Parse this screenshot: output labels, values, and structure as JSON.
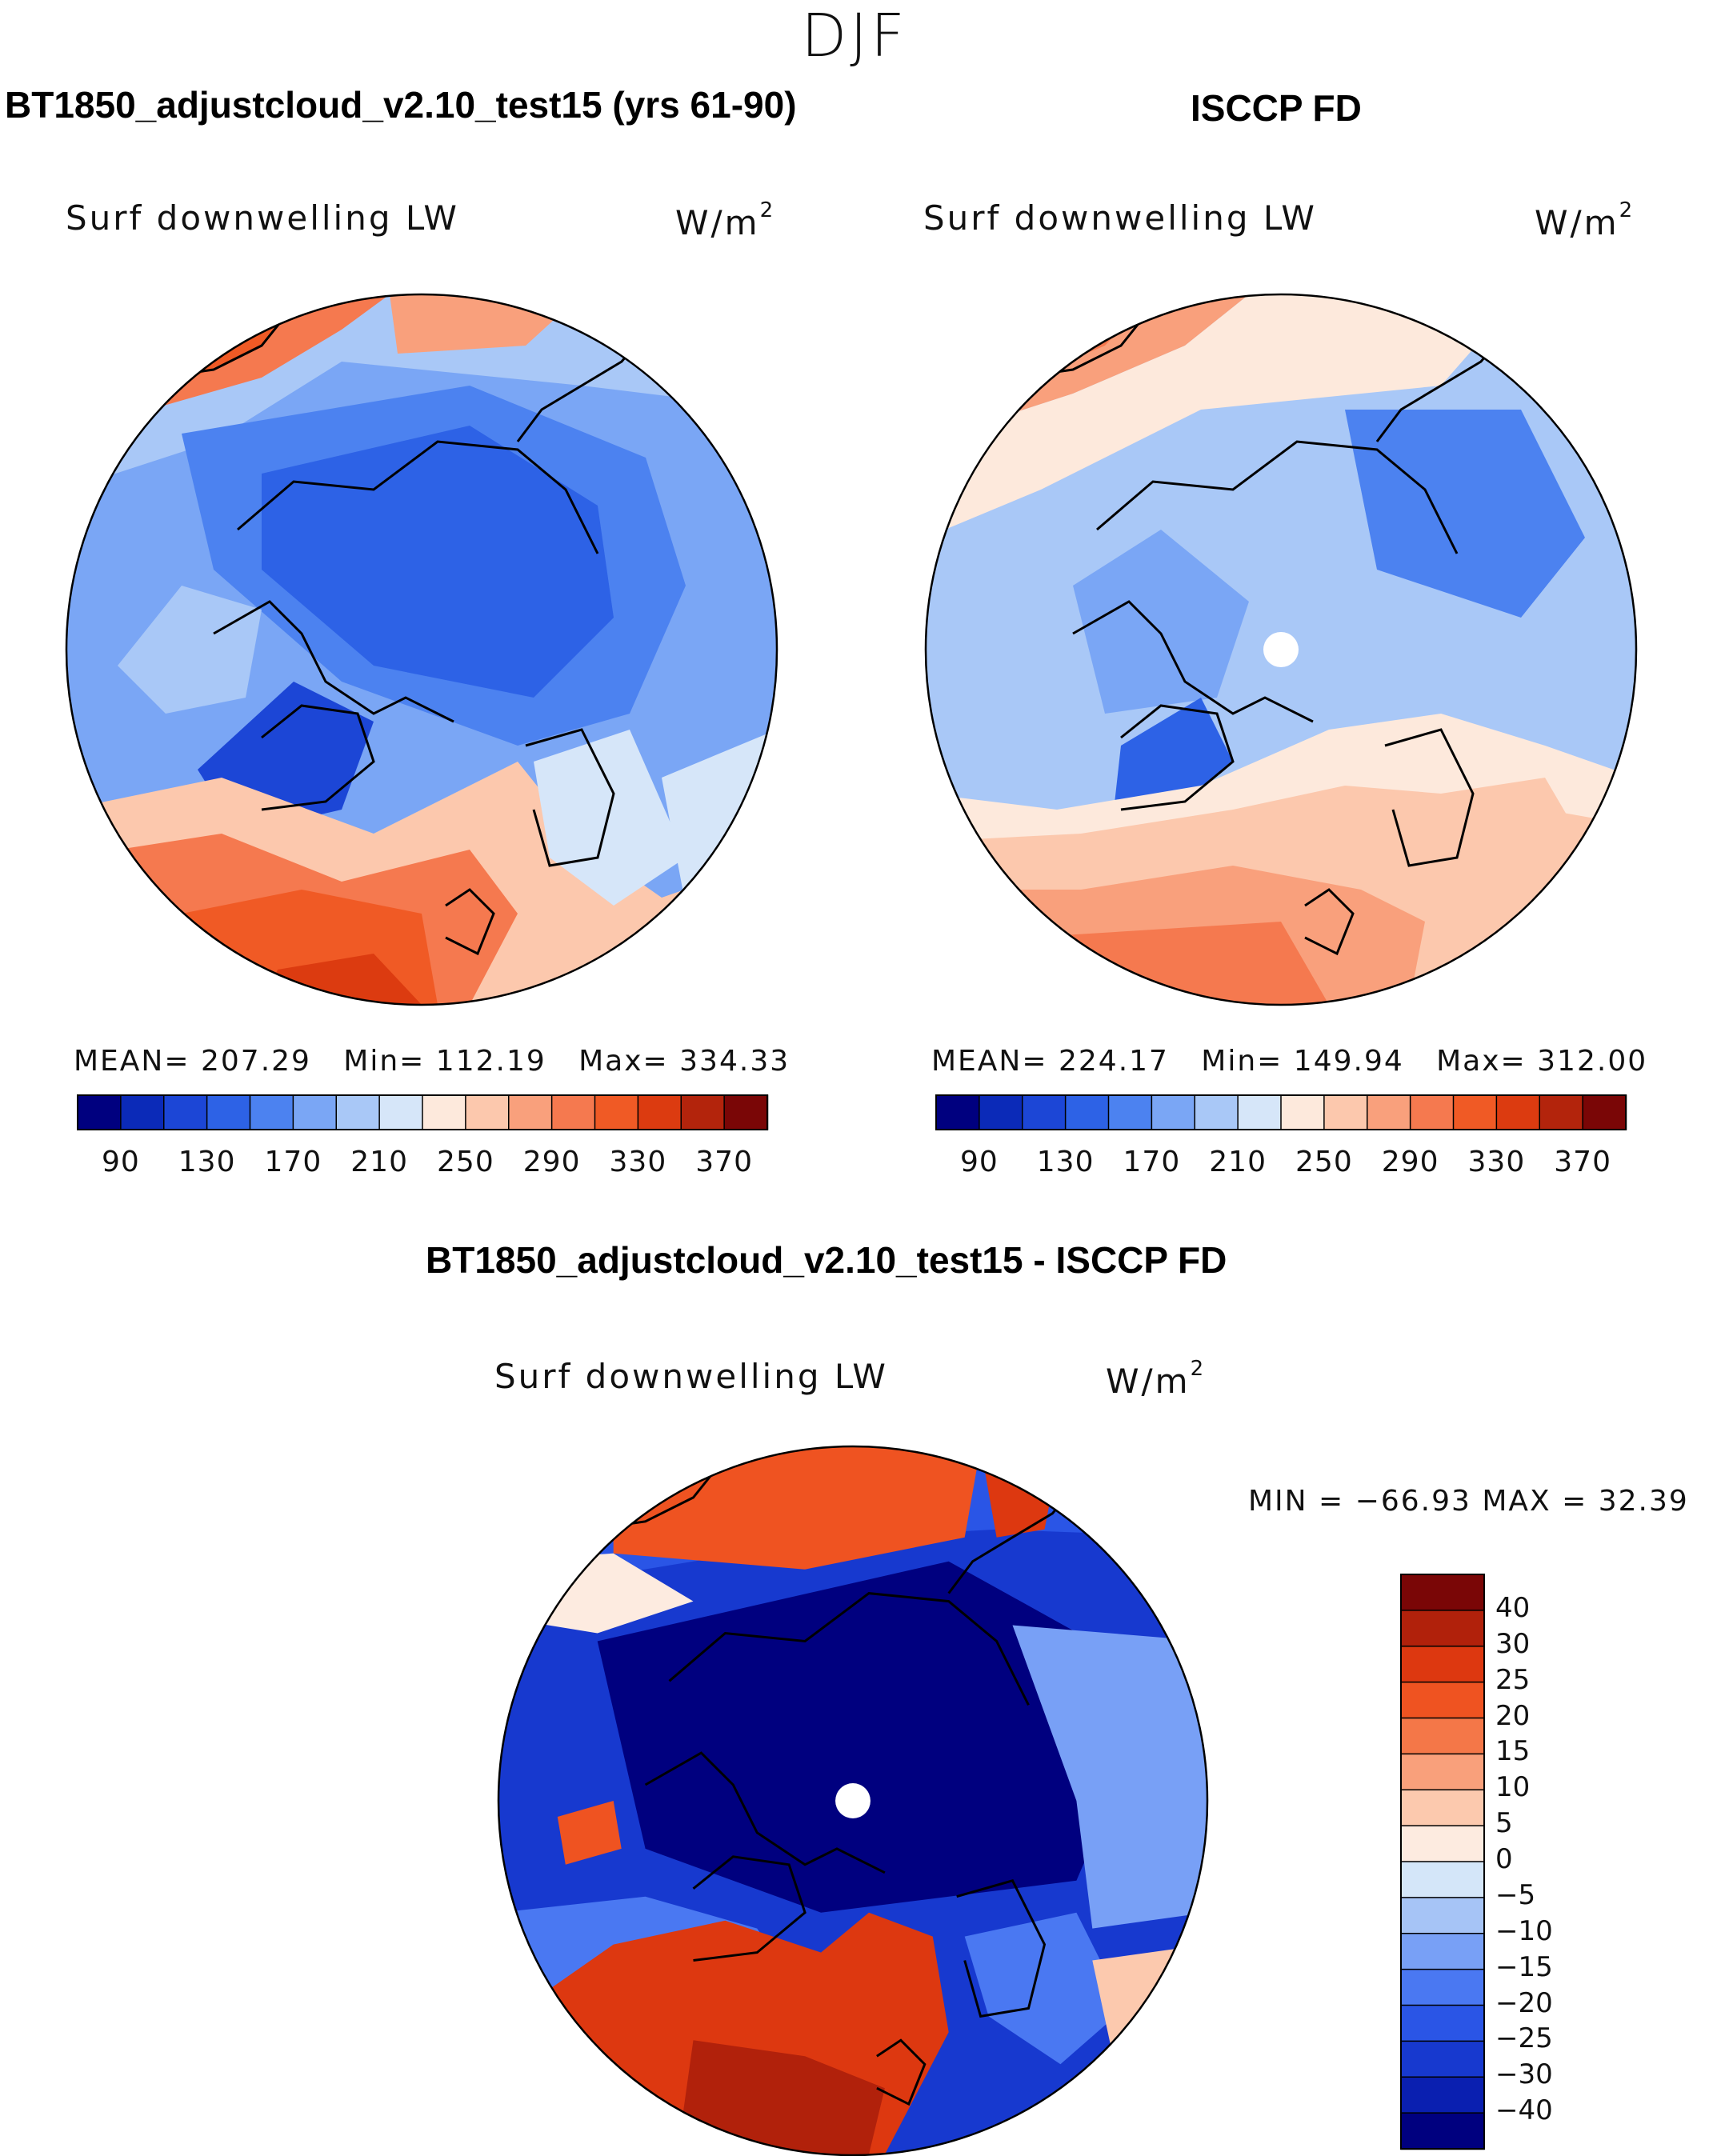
{
  "season": "DJF",
  "colors": {
    "seq": [
      "#00007f",
      "#0b2ab8",
      "#1c46d6",
      "#2d62e6",
      "#4c82f0",
      "#7aa6f5",
      "#a9c8f7",
      "#d6e6f9",
      "#fde9dc",
      "#fcc8ad",
      "#f9a07c",
      "#f5794f",
      "#f05a25",
      "#dc3b10",
      "#b3240c",
      "#7a0606"
    ],
    "diff": [
      "#00007f",
      "#0a1fb0",
      "#1739cf",
      "#2a55e6",
      "#4a78f2",
      "#78a0f6",
      "#a6c4f6",
      "#d4e6f9",
      "#fdebe0",
      "#fcc9ae",
      "#f9a07b",
      "#f47748",
      "#ef5321",
      "#dd3810",
      "#b1210b",
      "#7a0606"
    ]
  },
  "chart_data": [
    {
      "type": "heatmap",
      "projection": "north-polar-stereographic",
      "title": "BT1850_adjustcloud_v2.10_test15 (yrs 61-90)",
      "variable": "Surf downwelling LW",
      "units": "W/m",
      "units_exp": "2",
      "stats": {
        "mean_label": "MEAN=",
        "mean": "207.29",
        "min_label": "Min=",
        "min": "112.19",
        "max_label": "Max=",
        "max": "334.33"
      },
      "colorbar": {
        "orientation": "horizontal",
        "levels": [
          80,
          100,
          120,
          140,
          160,
          180,
          200,
          220,
          240,
          260,
          280,
          300,
          320,
          340,
          360,
          380
        ],
        "tick_labels": [
          "90",
          "130",
          "170",
          "210",
          "250",
          "290",
          "330",
          "370"
        ]
      }
    },
    {
      "type": "heatmap",
      "projection": "north-polar-stereographic",
      "title": "ISCCP FD",
      "variable": "Surf downwelling LW",
      "units": "W/m",
      "units_exp": "2",
      "stats": {
        "mean_label": "MEAN=",
        "mean": "224.17",
        "min_label": "Min=",
        "min": "149.94",
        "max_label": "Max=",
        "max": "312.00"
      },
      "colorbar": {
        "orientation": "horizontal",
        "levels": [
          80,
          100,
          120,
          140,
          160,
          180,
          200,
          220,
          240,
          260,
          280,
          300,
          320,
          340,
          360,
          380
        ],
        "tick_labels": [
          "90",
          "130",
          "170",
          "210",
          "250",
          "290",
          "330",
          "370"
        ]
      }
    },
    {
      "type": "heatmap",
      "projection": "north-polar-stereographic",
      "title": "BT1850_adjustcloud_v2.10_test15 - ISCCP FD",
      "variable": "Surf downwelling LW",
      "units": "W/m",
      "units_exp": "2",
      "minmax": {
        "text": "MIN = −66.93 MAX =   32.39",
        "min": -66.93,
        "max": 32.39
      },
      "colorbar": {
        "orientation": "vertical",
        "tick_labels": [
          "40",
          "30",
          "25",
          "20",
          "15",
          "10",
          "5",
          "0",
          "−5",
          "−10",
          "−15",
          "−20",
          "−25",
          "−30",
          "−40"
        ]
      }
    }
  ]
}
